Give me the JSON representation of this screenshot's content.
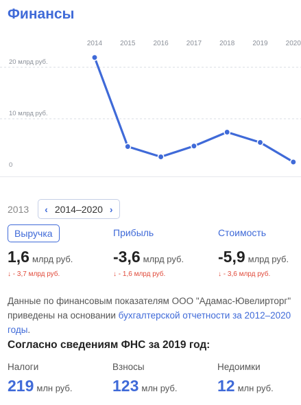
{
  "title": "Финансы",
  "chart_data": {
    "type": "line",
    "x": [
      "2014",
      "2015",
      "2016",
      "2017",
      "2018",
      "2019",
      "2020"
    ],
    "values": [
      21.9,
      4.6,
      2.6,
      4.7,
      7.4,
      5.4,
      1.6
    ],
    "y_ticks": [
      {
        "value": 0,
        "label": "0"
      },
      {
        "value": 10,
        "label": "10 млрд руб."
      },
      {
        "value": 20,
        "label": "20 млрд руб."
      }
    ],
    "ylim": [
      0,
      25
    ],
    "color": "#3f6ad8"
  },
  "period": {
    "previous": "2013",
    "current": "2014–2020",
    "prev_icon": "chevron-left-icon",
    "next_icon": "chevron-right-icon"
  },
  "metrics": [
    {
      "label": "Выручка",
      "value": "1,6",
      "unit": "млрд руб.",
      "delta": "↓ - 3,7 млрд руб.",
      "active": true
    },
    {
      "label": "Прибыль",
      "value": "-3,6",
      "unit": "млрд руб.",
      "delta": "↓ - 1,6 млрд руб.",
      "active": false
    },
    {
      "label": "Стоимость",
      "value": "-5,9",
      "unit": "млрд руб.",
      "delta": "↓ - 3,6 млрд руб.",
      "active": false
    }
  ],
  "description": {
    "text": "Данные по финансовым показателям ООО \"Адамас-Ювелирторг\" приведены на основании ",
    "link": "бухгалтерской отчетности за 2012–2020 годы",
    "end": "."
  },
  "fns": {
    "title": "Согласно сведениям ФНС за 2019 год:",
    "items": [
      {
        "label": "Налоги",
        "value": "219",
        "unit": "млн руб."
      },
      {
        "label": "Взносы",
        "value": "123",
        "unit": "млн руб."
      },
      {
        "label": "Недоимки",
        "value": "12",
        "unit": "млн руб."
      }
    ]
  }
}
